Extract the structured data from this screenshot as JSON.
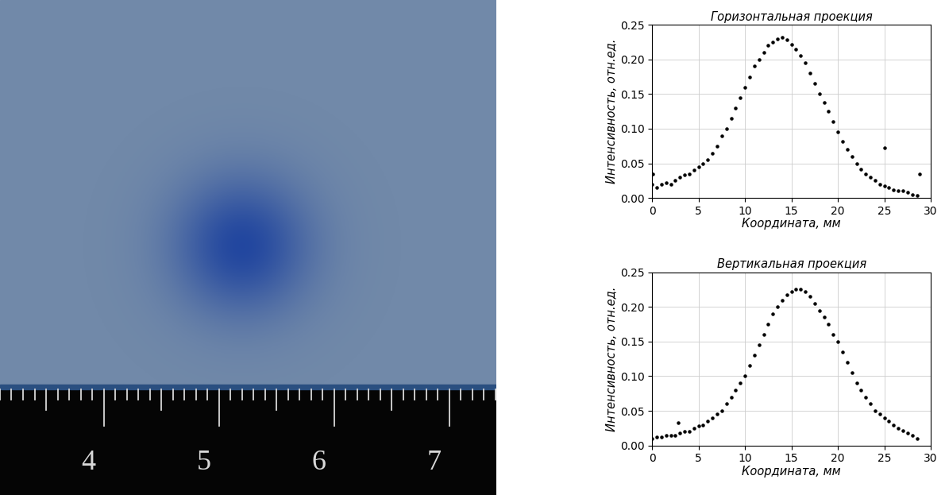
{
  "photo": {
    "ruler_labels": [
      4,
      5,
      6,
      7
    ]
  },
  "chart_data": [
    {
      "type": "scatter",
      "title": "Горизонтальная проекция",
      "x_label": "Координата, мм",
      "y_label": "Интенсивность, отн.ед.",
      "x": [
        0,
        0.1,
        0.5,
        1,
        1.5,
        2,
        2.5,
        3,
        3.5,
        4,
        4.5,
        5,
        5.5,
        6,
        6.5,
        7,
        7.5,
        8,
        8.5,
        9,
        9.5,
        10,
        10.5,
        11,
        11.5,
        12,
        12.5,
        13,
        13.5,
        14,
        14.5,
        15,
        15.5,
        16,
        16.5,
        17,
        17.5,
        18,
        18.5,
        19,
        19.5,
        20,
        20.5,
        21,
        21.5,
        22,
        22.5,
        23,
        23.5,
        24,
        24.5,
        25,
        25,
        25.5,
        26,
        26.5,
        27,
        27.5,
        28,
        28.5,
        28.8
      ],
      "values": [
        0.02,
        0.035,
        0.015,
        0.02,
        0.022,
        0.02,
        0.025,
        0.03,
        0.033,
        0.035,
        0.04,
        0.045,
        0.05,
        0.055,
        0.065,
        0.075,
        0.09,
        0.1,
        0.115,
        0.13,
        0.145,
        0.16,
        0.175,
        0.19,
        0.2,
        0.21,
        0.22,
        0.225,
        0.23,
        0.232,
        0.228,
        0.222,
        0.215,
        0.205,
        0.195,
        0.18,
        0.165,
        0.15,
        0.138,
        0.125,
        0.11,
        0.095,
        0.082,
        0.07,
        0.06,
        0.05,
        0.042,
        0.035,
        0.03,
        0.025,
        0.02,
        0.018,
        0.072,
        0.015,
        0.012,
        0.01,
        0.01,
        0.008,
        0.005,
        0.004,
        0.035
      ],
      "color": "#000000",
      "marker": "o",
      "xlim": [
        0,
        30
      ],
      "xticks": [
        0,
        5,
        10,
        15,
        20,
        25,
        30
      ],
      "ylim": [
        0,
        0.25
      ],
      "yticks": [
        {
          "value": 0,
          "label": "0.00"
        },
        {
          "value": 0.05,
          "label": "0.05"
        },
        {
          "value": 0.1,
          "label": "0.10"
        },
        {
          "value": 0.15,
          "label": "0.15"
        },
        {
          "value": 0.2,
          "label": "0.20"
        },
        {
          "value": 0.25,
          "label": "0.25"
        }
      ],
      "grid": true
    },
    {
      "type": "scatter",
      "title": "Вертикальная проекция",
      "x_label": "Координата, мм",
      "y_label": "Интенсивность, отн.ед.",
      "x": [
        0,
        0.5,
        1,
        1.5,
        2,
        2.5,
        2.8,
        3,
        3.5,
        4,
        4.5,
        5,
        5.5,
        6,
        6.5,
        7,
        7.5,
        8,
        8.5,
        9,
        9.5,
        10,
        10.5,
        11,
        11.5,
        12,
        12.5,
        13,
        13.5,
        14,
        14.5,
        15,
        15.5,
        16,
        16.5,
        17,
        17.5,
        18,
        18.5,
        19,
        19.5,
        20,
        20.5,
        21,
        21.5,
        22,
        22.5,
        23,
        23.5,
        24,
        24.5,
        25,
        25.5,
        26,
        26.5,
        27,
        27.5,
        28,
        28.5
      ],
      "values": [
        0.01,
        0.012,
        0.012,
        0.014,
        0.015,
        0.015,
        0.033,
        0.018,
        0.02,
        0.02,
        0.025,
        0.028,
        0.03,
        0.035,
        0.04,
        0.045,
        0.05,
        0.06,
        0.07,
        0.08,
        0.09,
        0.1,
        0.115,
        0.13,
        0.145,
        0.16,
        0.175,
        0.19,
        0.2,
        0.21,
        0.218,
        0.222,
        0.225,
        0.225,
        0.222,
        0.215,
        0.205,
        0.195,
        0.185,
        0.175,
        0.16,
        0.15,
        0.135,
        0.12,
        0.105,
        0.09,
        0.08,
        0.07,
        0.06,
        0.05,
        0.045,
        0.04,
        0.035,
        0.03,
        0.025,
        0.022,
        0.018,
        0.015,
        0.01
      ],
      "color": "#000000",
      "marker": "o",
      "xlim": [
        0,
        30
      ],
      "xticks": [
        0,
        5,
        10,
        15,
        20,
        25,
        30
      ],
      "ylim": [
        0,
        0.25
      ],
      "yticks": [
        {
          "value": 0,
          "label": "0.00"
        },
        {
          "value": 0.05,
          "label": "0.05"
        },
        {
          "value": 0.1,
          "label": "0.10"
        },
        {
          "value": 0.15,
          "label": "0.15"
        },
        {
          "value": 0.2,
          "label": "0.20"
        },
        {
          "value": 0.25,
          "label": "0.25"
        }
      ],
      "grid": true
    }
  ]
}
